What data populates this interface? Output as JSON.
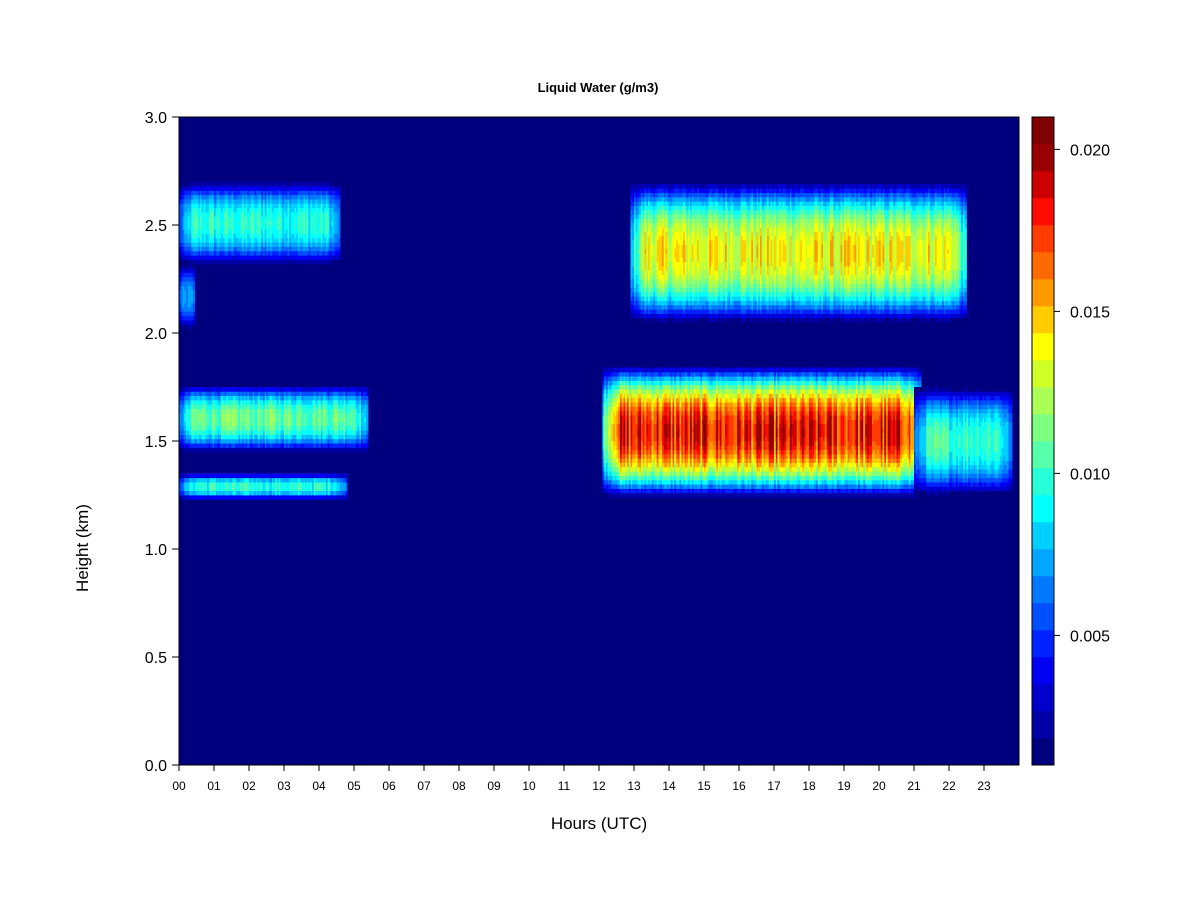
{
  "chart_data": {
    "type": "heatmap",
    "title": "Liquid Water (g/m3)",
    "xlabel": "Hours (UTC)",
    "ylabel": "Height (km)",
    "xlim": [
      0,
      24
    ],
    "ylim": [
      0.0,
      3.0
    ],
    "x_ticks": [
      "00",
      "01",
      "02",
      "03",
      "04",
      "05",
      "06",
      "07",
      "08",
      "09",
      "10",
      "11",
      "12",
      "13",
      "14",
      "15",
      "16",
      "17",
      "18",
      "19",
      "20",
      "21",
      "22",
      "23"
    ],
    "y_ticks": [
      "0.0",
      "0.5",
      "1.0",
      "1.5",
      "2.0",
      "2.5",
      "3.0"
    ],
    "colorbar": {
      "min": 0.001,
      "max": 0.021,
      "ticks": [
        "0.005",
        "0.010",
        "0.015",
        "0.020"
      ],
      "colors": [
        "#00007f",
        "#0000a6",
        "#0000cc",
        "#0000f2",
        "#0022ff",
        "#0050ff",
        "#0078ff",
        "#00a6ff",
        "#00d0ff",
        "#00ffff",
        "#26ffd8",
        "#56ffa9",
        "#7fff7f",
        "#a9ff56",
        "#d0ff26",
        "#ffff00",
        "#ffcc00",
        "#ff9900",
        "#ff6a00",
        "#ff3c00",
        "#ff0c00",
        "#cc0000",
        "#990000",
        "#7f0000"
      ]
    },
    "cloud_layers": [
      {
        "time_start": 0.0,
        "time_end": 4.6,
        "base_km": 2.32,
        "top_km": 2.7,
        "peak_g_m3": 0.0105
      },
      {
        "time_start": 0.0,
        "time_end": 0.45,
        "base_km": 2.02,
        "top_km": 2.32,
        "peak_g_m3": 0.01
      },
      {
        "time_start": 12.9,
        "time_end": 22.5,
        "base_km": 2.05,
        "top_km": 2.7,
        "peak_g_m3": 0.015
      },
      {
        "time_start": 0.0,
        "time_end": 5.4,
        "base_km": 1.45,
        "top_km": 1.76,
        "peak_g_m3": 0.012
      },
      {
        "time_start": 0.0,
        "time_end": 4.8,
        "base_km": 1.23,
        "top_km": 1.35,
        "peak_g_m3": 0.0105
      },
      {
        "time_start": 12.1,
        "time_end": 21.2,
        "base_km": 1.24,
        "top_km": 1.85,
        "peak_g_m3": 0.0195
      },
      {
        "time_start": 21.0,
        "time_end": 23.8,
        "base_km": 1.25,
        "top_km": 1.75,
        "peak_g_m3": 0.011
      }
    ]
  }
}
